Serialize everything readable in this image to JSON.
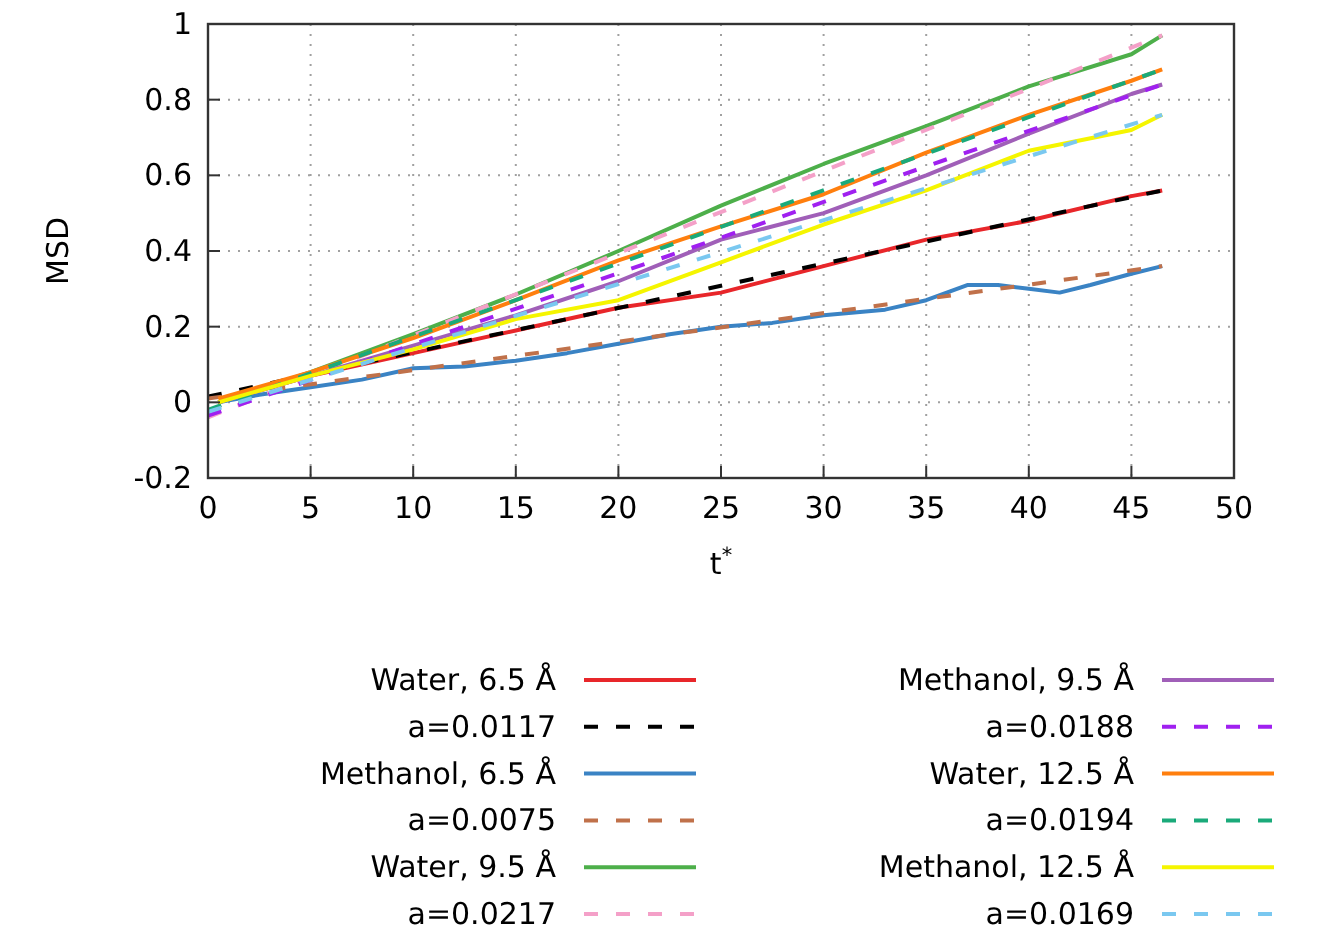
{
  "chart_data": {
    "type": "line",
    "xlabel": "t$^{*}$",
    "ylabel": "MSD",
    "xlim": [
      0,
      50
    ],
    "ylim": [
      -0.2,
      1
    ],
    "xticks": [
      0,
      5,
      10,
      15,
      20,
      25,
      30,
      35,
      40,
      45,
      50
    ],
    "yticks": [
      -0.2,
      0,
      0.2,
      0.4,
      0.6,
      0.8,
      1
    ],
    "grid": true,
    "legend": "bottom",
    "marker": "none",
    "series": [
      {
        "name": "Water, 6.5 Å",
        "color": "#e8262a",
        "line_style": "solid",
        "x": [
          0.5,
          5,
          10,
          15,
          20,
          25,
          30,
          35,
          40,
          45,
          46.5
        ],
        "values": [
          0.0,
          0.07,
          0.13,
          0.19,
          0.25,
          0.29,
          0.36,
          0.43,
          0.48,
          0.545,
          0.56
        ]
      },
      {
        "name": "a=0.0117",
        "color": "#000000",
        "line_style": "dashed",
        "x": [
          0,
          46.5
        ],
        "values": [
          0.015,
          0.56
        ]
      },
      {
        "name": "Methanol, 6.5 Å",
        "color": "#3a83c4",
        "line_style": "solid",
        "x": [
          0.5,
          2.5,
          5,
          7.5,
          10,
          12.5,
          15,
          17.5,
          20,
          22.5,
          25,
          27.5,
          30,
          33,
          35,
          37,
          38.5,
          40,
          41.5,
          43,
          45,
          46.5
        ],
        "values": [
          0.0,
          0.02,
          0.04,
          0.06,
          0.09,
          0.095,
          0.11,
          0.13,
          0.155,
          0.18,
          0.2,
          0.21,
          0.23,
          0.245,
          0.27,
          0.31,
          0.31,
          0.3,
          0.29,
          0.31,
          0.34,
          0.36
        ]
      },
      {
        "name": "a=0.0075",
        "color": "#c0714a",
        "line_style": "dashed",
        "x": [
          0,
          46.5
        ],
        "values": [
          0.01,
          0.36
        ]
      },
      {
        "name": "Water, 9.5 Å",
        "color": "#4daf4a",
        "line_style": "solid",
        "x": [
          0.5,
          5,
          10,
          15,
          20,
          25,
          30,
          35,
          40,
          45,
          46.5
        ],
        "values": [
          0.0,
          0.08,
          0.18,
          0.285,
          0.4,
          0.52,
          0.63,
          0.73,
          0.835,
          0.92,
          0.97
        ]
      },
      {
        "name": "a=0.0217",
        "color": "#f4a0c8",
        "line_style": "dashed",
        "x": [
          0,
          46.5
        ],
        "values": [
          -0.04,
          0.97
        ]
      },
      {
        "name": "Methanol, 9.5 Å",
        "color": "#a05fb8",
        "line_style": "solid",
        "x": [
          0.5,
          5,
          10,
          15,
          20,
          25,
          30,
          35,
          40,
          45,
          46.5
        ],
        "values": [
          0.0,
          0.07,
          0.15,
          0.23,
          0.32,
          0.43,
          0.5,
          0.6,
          0.71,
          0.815,
          0.84
        ]
      },
      {
        "name": "a=0.0188",
        "color": "#a020f0",
        "line_style": "dashed",
        "x": [
          0,
          46.5
        ],
        "values": [
          -0.035,
          0.84
        ]
      },
      {
        "name": "Water, 12.5 Å",
        "color": "#ff7f0e",
        "line_style": "solid",
        "x": [
          0.5,
          5,
          10,
          15,
          20,
          25,
          30,
          35,
          40,
          45,
          46.5
        ],
        "values": [
          0.01,
          0.08,
          0.17,
          0.27,
          0.375,
          0.465,
          0.55,
          0.66,
          0.76,
          0.85,
          0.88
        ]
      },
      {
        "name": "a=0.0194",
        "color": "#1aaa7a",
        "line_style": "dashed",
        "x": [
          0,
          46.5
        ],
        "values": [
          -0.02,
          0.88
        ]
      },
      {
        "name": "Methanol, 12.5 Å",
        "color": "#f5f500",
        "line_style": "solid",
        "x": [
          0.5,
          5,
          10,
          15,
          20,
          25,
          30,
          35,
          40,
          45,
          46.5
        ],
        "values": [
          0.0,
          0.07,
          0.14,
          0.22,
          0.27,
          0.37,
          0.47,
          0.56,
          0.665,
          0.72,
          0.76
        ]
      },
      {
        "name": "a=0.0169",
        "color": "#7ac8f0",
        "line_style": "dashed",
        "x": [
          0,
          46.5
        ],
        "values": [
          -0.025,
          0.76
        ]
      }
    ]
  }
}
